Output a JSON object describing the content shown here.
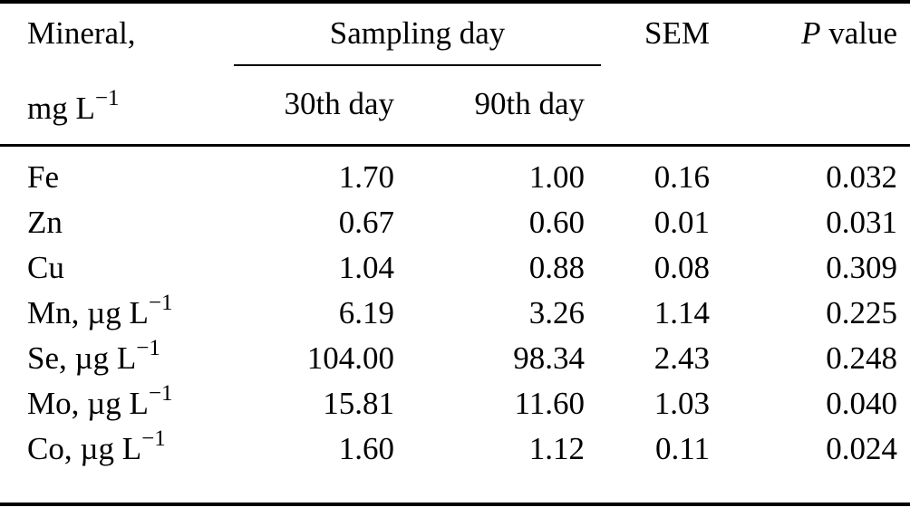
{
  "colors": {
    "text": "#000000",
    "background": "#ffffff",
    "rule": "#000000"
  },
  "header": {
    "col1_line1": "Mineral,",
    "col1_line2_base": "mg L",
    "col1_line2_sup": "−1",
    "group": "Sampling day",
    "sub1": "30th day",
    "sub2": "90th day",
    "col4": "SEM",
    "col5_italic": "P",
    "col5_rest": "value"
  },
  "rows": [
    {
      "label": "Fe",
      "label_sup": "",
      "day30": "1.70",
      "day90": "1.00",
      "sem": "0.16",
      "p_value": "0.032"
    },
    {
      "label": "Zn",
      "label_sup": "",
      "day30": "0.67",
      "day90": "0.60",
      "sem": "0.01",
      "p_value": "0.031"
    },
    {
      "label": "Cu",
      "label_sup": "",
      "day30": "1.04",
      "day90": "0.88",
      "sem": "0.08",
      "p_value": "0.309"
    },
    {
      "label": "Mn, µg L",
      "label_sup": "−1",
      "day30": "6.19",
      "day90": "3.26",
      "sem": "1.14",
      "p_value": "0.225"
    },
    {
      "label": "Se, µg L",
      "label_sup": "−1",
      "day30": "104.00",
      "day90": "98.34",
      "sem": "2.43",
      "p_value": "0.248"
    },
    {
      "label": "Mo, µg L",
      "label_sup": "−1",
      "day30": "15.81",
      "day90": "11.60",
      "sem": "1.03",
      "p_value": "0.040"
    },
    {
      "label": "Co, µg L",
      "label_sup": "−1",
      "day30": "1.60",
      "day90": "1.12",
      "sem": "0.11",
      "p_value": "0.024"
    }
  ]
}
